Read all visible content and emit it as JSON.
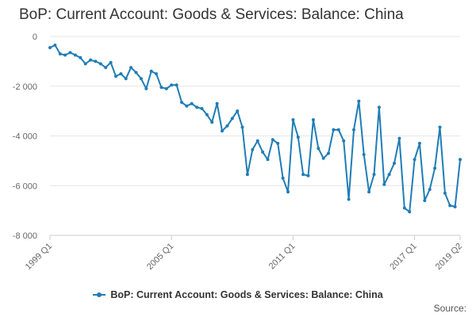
{
  "title": "BoP: Current Account: Goods & Services: Balance: China",
  "source_label": "Source:",
  "colors": {
    "series": "#1f7db5",
    "grid": "#e6e6e6",
    "axis": "#cccccc",
    "text": "#333333"
  },
  "chart_data": {
    "type": "line",
    "title": "BoP: Current Account: Goods & Services: Balance: China",
    "xlabel": "",
    "ylabel": "",
    "ylim": [
      -8000,
      0
    ],
    "yticks": [
      0,
      -2000,
      -4000,
      -6000,
      -8000
    ],
    "ytick_labels": [
      "0",
      "-2 000",
      "-4 000",
      "-6 000",
      "-8 000"
    ],
    "xticks": [
      "1999 Q1",
      "2005 Q1",
      "2011 Q1",
      "2017 Q1",
      "2019 Q2"
    ],
    "grid": true,
    "legend_position": "bottom",
    "series": [
      {
        "name": "BoP: Current Account: Goods & Services: Balance: China",
        "x": [
          "1999 Q1",
          "1999 Q2",
          "1999 Q3",
          "1999 Q4",
          "2000 Q1",
          "2000 Q2",
          "2000 Q3",
          "2000 Q4",
          "2001 Q1",
          "2001 Q2",
          "2001 Q3",
          "2001 Q4",
          "2002 Q1",
          "2002 Q2",
          "2002 Q3",
          "2002 Q4",
          "2003 Q1",
          "2003 Q2",
          "2003 Q3",
          "2003 Q4",
          "2004 Q1",
          "2004 Q2",
          "2004 Q3",
          "2004 Q4",
          "2005 Q1",
          "2005 Q2",
          "2005 Q3",
          "2005 Q4",
          "2006 Q1",
          "2006 Q2",
          "2006 Q3",
          "2006 Q4",
          "2007 Q1",
          "2007 Q2",
          "2007 Q3",
          "2007 Q4",
          "2008 Q1",
          "2008 Q2",
          "2008 Q3",
          "2008 Q4",
          "2009 Q1",
          "2009 Q2",
          "2009 Q3",
          "2009 Q4",
          "2010 Q1",
          "2010 Q2",
          "2010 Q3",
          "2010 Q4",
          "2011 Q1",
          "2011 Q2",
          "2011 Q3",
          "2011 Q4",
          "2012 Q1",
          "2012 Q2",
          "2012 Q3",
          "2012 Q4",
          "2013 Q1",
          "2013 Q2",
          "2013 Q3",
          "2013 Q4",
          "2014 Q1",
          "2014 Q2",
          "2014 Q3",
          "2014 Q4",
          "2015 Q1",
          "2015 Q2",
          "2015 Q3",
          "2015 Q4",
          "2016 Q1",
          "2016 Q2",
          "2016 Q3",
          "2016 Q4",
          "2017 Q1",
          "2017 Q2",
          "2017 Q3",
          "2017 Q4",
          "2018 Q1",
          "2018 Q2",
          "2018 Q3",
          "2018 Q4",
          "2019 Q1",
          "2019 Q2"
        ],
        "values": [
          -450,
          -350,
          -700,
          -750,
          -650,
          -750,
          -850,
          -1100,
          -950,
          -1000,
          -1100,
          -1250,
          -1050,
          -1600,
          -1500,
          -1700,
          -1250,
          -1450,
          -1700,
          -2100,
          -1400,
          -1500,
          -2050,
          -2100,
          -1950,
          -1950,
          -2650,
          -2800,
          -2700,
          -2850,
          -2900,
          -3150,
          -3450,
          -2700,
          -3800,
          -3600,
          -3300,
          -3000,
          -3650,
          -5550,
          -4550,
          -4200,
          -4650,
          -4950,
          -4150,
          -4300,
          -5700,
          -6250,
          -3350,
          -4050,
          -5550,
          -5600,
          -3350,
          -4500,
          -4900,
          -4700,
          -3750,
          -3750,
          -4200,
          -6550,
          -3750,
          -2600,
          -4750,
          -6250,
          -5550,
          -2850,
          -5950,
          -5550,
          -5100,
          -4100,
          -6900,
          -7050,
          -4950,
          -4300,
          -6600,
          -6150,
          -5300,
          -3650,
          -6300,
          -6800,
          -6850,
          -4950
        ]
      }
    ]
  }
}
